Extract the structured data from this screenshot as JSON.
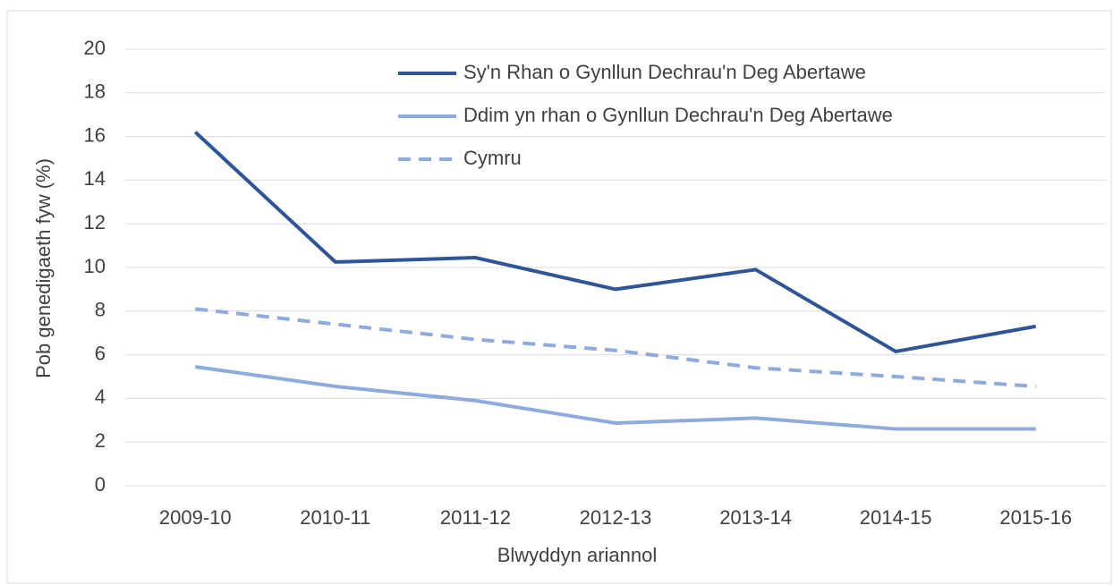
{
  "chart_data": {
    "type": "line",
    "y_label": "Pob genedigaeth fyw (%)",
    "x_label": "Blwyddyn ariannol",
    "categories": [
      "2009-10",
      "2010-11",
      "2011-12",
      "2012-13",
      "2013-14",
      "2014-15",
      "2015-16"
    ],
    "series": [
      {
        "name": "Sy'n Rhan o Gynllun Dechrau'n Deg Abertawe",
        "color": "#2f5597",
        "dash": false,
        "values": [
          16.2,
          10.25,
          10.45,
          9.0,
          9.9,
          6.15,
          7.3
        ]
      },
      {
        "name": "Ddim yn rhan o Gynllun Dechrau'n Deg Abertawe",
        "color": "#8faadc",
        "dash": false,
        "values": [
          5.45,
          4.55,
          3.9,
          2.87,
          3.1,
          2.6,
          2.6
        ]
      },
      {
        "name": "Cymru",
        "color": "#8faadc",
        "dash": true,
        "values": [
          8.1,
          7.4,
          6.7,
          6.2,
          5.4,
          5.0,
          4.55
        ]
      }
    ],
    "ylim": [
      0,
      20
    ],
    "yticks": [
      0,
      2,
      4,
      6,
      8,
      10,
      12,
      14,
      16,
      18,
      20
    ],
    "grid": true,
    "legend": "top"
  }
}
